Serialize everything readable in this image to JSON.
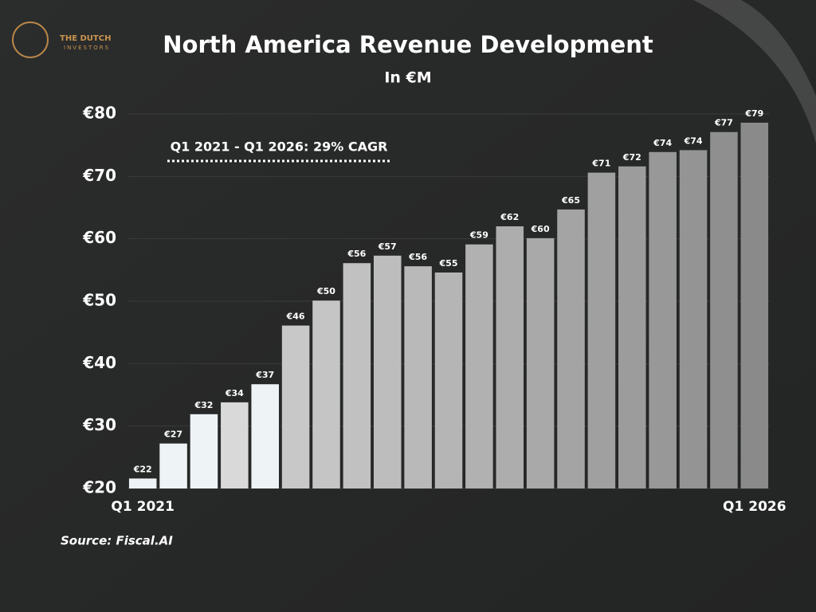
{
  "chart_data": {
    "type": "bar",
    "title": "North America Revenue Development",
    "subtitle": "In €M",
    "annotation": "Q1 2021 - Q1 2026: 29% CAGR",
    "source": "Source: Fiscal.AI",
    "brand": [
      "THE DUTCH",
      "INVESTORS"
    ],
    "categories": [
      "Q1 2021",
      null,
      null,
      null,
      null,
      null,
      null,
      null,
      null,
      null,
      null,
      null,
      null,
      null,
      null,
      null,
      null,
      null,
      null,
      null,
      "Q1 2026"
    ],
    "values": [
      21.6,
      27.2,
      31.9,
      33.8,
      36.7,
      46.1,
      50.1,
      56.1,
      57.3,
      55.6,
      54.6,
      59.1,
      62.0,
      60.1,
      64.7,
      70.6,
      71.6,
      73.9,
      74.2,
      77.1,
      78.6
    ],
    "value_labels": [
      "€22",
      "€27",
      "€32",
      "€34",
      "€37",
      "€46",
      "€50",
      "€56",
      "€57",
      "€56",
      "€55",
      "€59",
      "€62",
      "€60",
      "€65",
      "€71",
      "€72",
      "€74",
      "€74",
      "€77",
      "€79"
    ],
    "colors": [
      "#eef3f6",
      "#eef3f6",
      "#eef3f6",
      "#d9d9d9",
      "#eef3f6",
      "#c8c8c8",
      "#c5c5c5",
      "#c1c1c1",
      "#bdbdbd",
      "#b9b9b9",
      "#b5b5b5",
      "#b1b1b1",
      "#adadad",
      "#a9a9a9",
      "#a4a4a4",
      "#a0a0a0",
      "#9c9c9c",
      "#989898",
      "#949494",
      "#8f8f8f",
      "#8a8a8a"
    ],
    "ylim": [
      20,
      80
    ],
    "yticks": [
      {
        "value": 20,
        "label": "€20"
      },
      {
        "value": 30,
        "label": "€30"
      },
      {
        "value": 40,
        "label": "€40"
      },
      {
        "value": 50,
        "label": "€50"
      },
      {
        "value": 60,
        "label": "€60"
      },
      {
        "value": 70,
        "label": "€70"
      },
      {
        "value": 80,
        "label": "€80"
      }
    ],
    "grid": true
  }
}
